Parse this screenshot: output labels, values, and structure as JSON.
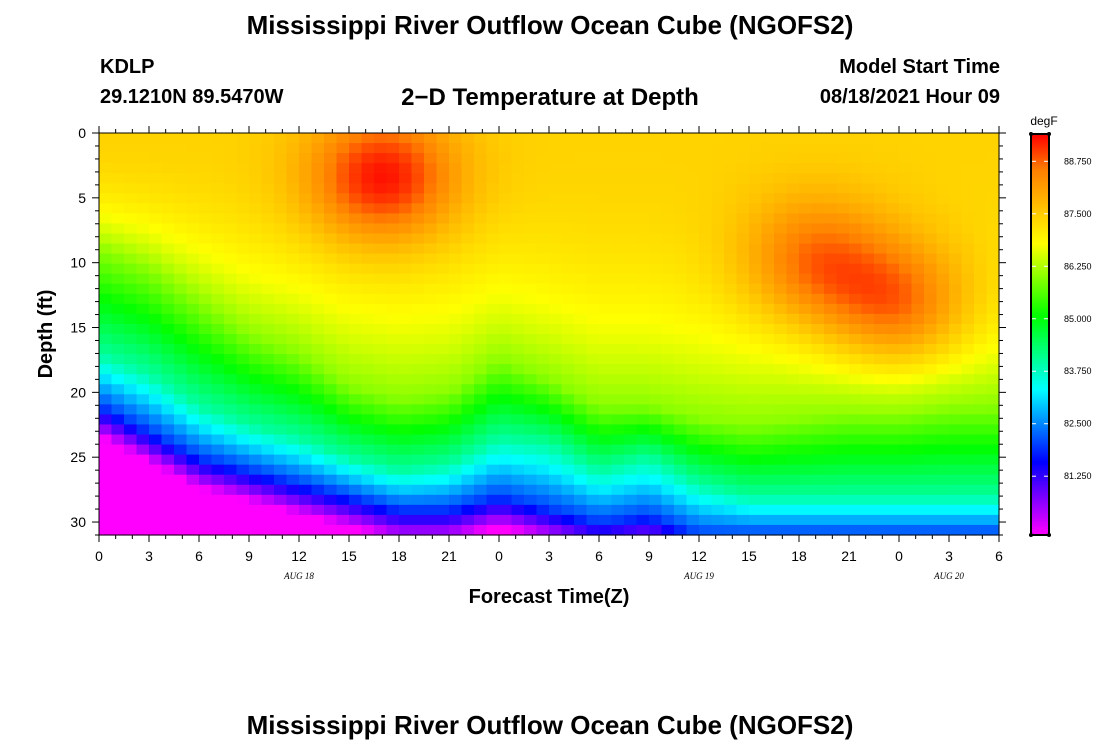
{
  "header": {
    "title": "Mississippi River Outflow Ocean Cube (NGOFS2)",
    "station": "KDLP",
    "coords": "29.1210N  89.5470W",
    "subtitle": "2−D Temperature at Depth",
    "start_label": "Model Start Time",
    "start_time": "08/18/2021 Hour 09"
  },
  "footer": {
    "title": "Mississippi River Outflow Ocean Cube (NGOFS2)"
  },
  "chart_data": {
    "type": "heatmap",
    "title": "2−D Temperature at Depth",
    "xlabel": "Forecast Time(Z)",
    "ylabel": "Depth (ft)",
    "x_tick_labels": [
      "0",
      "3",
      "6",
      "9",
      "12",
      "15",
      "18",
      "21",
      "0",
      "3",
      "6",
      "9",
      "12",
      "15",
      "18",
      "21",
      "0",
      "3",
      "6"
    ],
    "date_labels": [
      {
        "label": "AUG 18",
        "at_tick": 4
      },
      {
        "label": "AUG 19",
        "at_tick": 12
      },
      {
        "label": "AUG 20",
        "at_tick": 17
      }
    ],
    "x_range_hours": [
      0,
      54
    ],
    "y_ticks": [
      0,
      5,
      10,
      15,
      20,
      25,
      30
    ],
    "ylim": [
      0,
      31
    ],
    "y_inverted": true,
    "colorbar": {
      "unit": "degF",
      "ticks": [
        "88.750",
        "87.500",
        "86.250",
        "85.000",
        "83.750",
        "82.500",
        "81.250"
      ],
      "tick_values": [
        88.75,
        87.5,
        86.25,
        85.0,
        83.75,
        82.5,
        81.25
      ],
      "range": [
        79.85,
        89.4
      ],
      "colors": [
        "#ff00ff",
        "#8000ff",
        "#0000ff",
        "#0080ff",
        "#00ffff",
        "#00ff80",
        "#00ff00",
        "#80ff00",
        "#ffff00",
        "#ffc000",
        "#ff8000",
        "#ff0000"
      ]
    },
    "isotherms_ft": {
      "hours": [
        0,
        3,
        6,
        9,
        12,
        15,
        18,
        21,
        24,
        27,
        30,
        33,
        36,
        39,
        42,
        45,
        48,
        51,
        54
      ],
      "t86": [
        9,
        10.5,
        13,
        15.5,
        17,
        19.5,
        20.5,
        20,
        17.5,
        19,
        21,
        21,
        22,
        22.5,
        22,
        21.5,
        21.5,
        21,
        21
      ],
      "t84": [
        17,
        18.5,
        21,
        22.5,
        23.5,
        25,
        26,
        25.5,
        23.5,
        24,
        26,
        25,
        27,
        28,
        28,
        28,
        28,
        28,
        28
      ],
      "t82": [
        21,
        23,
        25,
        26,
        27,
        28,
        29,
        29,
        28,
        29,
        30,
        29.5,
        31,
        31,
        31,
        31,
        31,
        31,
        31
      ],
      "warm_core": [
        {
          "hour": 17,
          "depth": 3.5,
          "temp": 89.3
        },
        {
          "hour": 48,
          "depth": 13.5,
          "temp": 89.0
        },
        {
          "hour": 43,
          "depth": 10,
          "temp": 88.8
        }
      ]
    }
  }
}
